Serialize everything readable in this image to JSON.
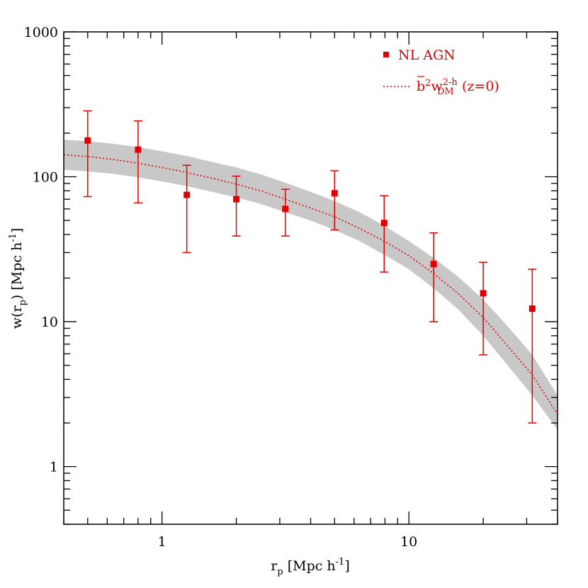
{
  "chart_data": {
    "type": "scatter",
    "title": "",
    "xscale": "log",
    "yscale": "log",
    "xlim": [
      0.4,
      40
    ],
    "ylim": [
      0.4,
      1000
    ],
    "xlabel": {
      "main": "r",
      "sub": "p",
      "unit": " [Mpc h",
      "sup": "-1",
      "close": "]"
    },
    "ylabel": {
      "pre": "w(r",
      "sub": "p",
      "mid": ") [Mpc h",
      "sup": "-1",
      "close": "]"
    },
    "x_ticks": [
      {
        "value": 1,
        "label": "1"
      },
      {
        "value": 10,
        "label": "10"
      }
    ],
    "y_ticks": [
      {
        "value": 1,
        "label": "1"
      },
      {
        "value": 10,
        "label": "10"
      },
      {
        "value": 100,
        "label": "100"
      },
      {
        "value": 1000,
        "label": "1000"
      }
    ],
    "grid": false,
    "legend_position": "top-right",
    "colors": {
      "points": "#e00000",
      "model_line": "#e00000",
      "band": "#c8c8c8",
      "axes": "#000000"
    },
    "series": [
      {
        "name": "NL AGN",
        "kind": "points_with_errorbars",
        "x": [
          0.5,
          0.8,
          1.26,
          2.0,
          3.16,
          5.0,
          7.94,
          12.6,
          20.0,
          31.6
        ],
        "y": [
          178,
          154,
          75,
          70,
          60,
          77,
          48,
          25,
          15.7,
          12.3
        ],
        "y_low": [
          73,
          66,
          30,
          39,
          39,
          43,
          22,
          10,
          5.9,
          2.0
        ],
        "y_high": [
          285,
          243,
          120,
          101,
          82,
          110,
          74,
          41,
          25.7,
          23
        ]
      },
      {
        "name": "",
        "legend_label": {
          "b": "b",
          "b_sup": "2",
          "w": "w",
          "w_sup": "2-h",
          "w_sub": "DM",
          "tail": "(z=0)"
        },
        "kind": "dotted_line_with_band",
        "x": [
          0.4,
          0.5,
          0.63,
          0.8,
          1.0,
          1.26,
          1.58,
          2.0,
          2.51,
          3.16,
          3.98,
          5.0,
          6.31,
          7.94,
          10.0,
          12.6,
          15.8,
          20.0,
          25.1,
          31.6,
          40.0
        ],
        "y": [
          142,
          138,
          132,
          124,
          116,
          107,
          98,
          89,
          80,
          70,
          61,
          53,
          44,
          36,
          28.5,
          21.5,
          15.7,
          10.7,
          6.8,
          4.3,
          2.3
        ],
        "band_low": [
          112,
          109,
          105,
          99,
          93,
          86,
          79,
          72,
          65,
          57,
          50,
          43,
          36,
          29,
          23,
          17,
          12.2,
          8.0,
          5.0,
          3.1,
          1.8
        ],
        "band_high": [
          180,
          176,
          169,
          160,
          150,
          139,
          127,
          116,
          104,
          91,
          79,
          68,
          57,
          46,
          36,
          27.5,
          20.5,
          14.2,
          9.3,
          5.9,
          3.1
        ]
      }
    ]
  }
}
